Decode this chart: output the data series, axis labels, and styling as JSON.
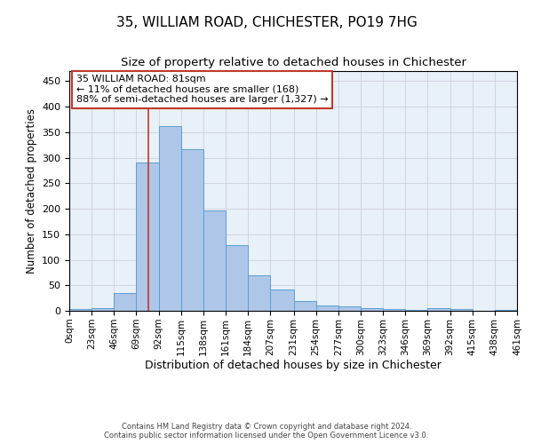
{
  "title1": "35, WILLIAM ROAD, CHICHESTER, PO19 7HG",
  "title2": "Size of property relative to detached houses in Chichester",
  "xlabel": "Distribution of detached houses by size in Chichester",
  "ylabel": "Number of detached properties",
  "bar_edges": [
    0,
    23,
    46,
    69,
    92,
    115,
    138,
    161,
    184,
    207,
    231,
    254,
    277,
    300,
    323,
    346,
    369,
    392,
    415,
    438,
    461
  ],
  "bar_heights": [
    3,
    6,
    35,
    290,
    362,
    317,
    197,
    128,
    70,
    41,
    20,
    11,
    8,
    5,
    4,
    2,
    6,
    4,
    0,
    1
  ],
  "bar_color": "#aec6e8",
  "bar_edge_color": "#5a9fd4",
  "ylim": [
    0,
    470
  ],
  "yticks": [
    0,
    50,
    100,
    150,
    200,
    250,
    300,
    350,
    400,
    450
  ],
  "property_sqm": 81,
  "vline_color": "#c0392b",
  "annotation_line1": "35 WILLIAM ROAD: 81sqm",
  "annotation_line2": "← 11% of detached houses are smaller (168)",
  "annotation_line3": "88% of semi-detached houses are larger (1,327) →",
  "annotation_box_color": "#c0392b",
  "footer_line1": "Contains HM Land Registry data © Crown copyright and database right 2024.",
  "footer_line2": "Contains public sector information licensed under the Open Government Licence v3.0.",
  "bg_color": "#ffffff",
  "plot_bg_color": "#e8f0f8",
  "grid_color": "#c8c8d8",
  "title_fontsize": 11,
  "subtitle_fontsize": 9.5,
  "ylabel_fontsize": 8.5,
  "xlabel_fontsize": 9,
  "tick_label_fontsize": 7.5,
  "annotation_fontsize": 8,
  "footer_fontsize": 6
}
